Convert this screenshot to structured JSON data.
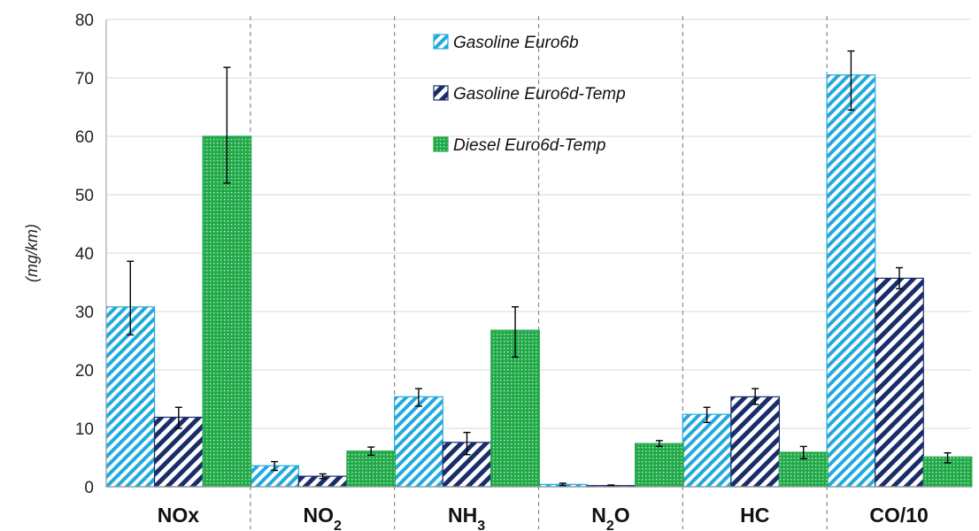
{
  "chart_data": {
    "type": "bar",
    "categories": [
      "NOx",
      "NO2",
      "NH3",
      "N2O",
      "HC",
      "CO/10"
    ],
    "category_labels": [
      {
        "main": "NOx",
        "sub": ""
      },
      {
        "main": "NO",
        "sub": "2"
      },
      {
        "main": "NH",
        "sub": "3"
      },
      {
        "main": "N",
        "sub": "2",
        "tail": "O"
      },
      {
        "main": "HC",
        "sub": ""
      },
      {
        "main": "CO/10",
        "sub": ""
      }
    ],
    "ylabel": "(mg/km)",
    "ylim": [
      0,
      80
    ],
    "yticks": [
      0,
      10,
      20,
      30,
      40,
      50,
      60,
      70,
      80
    ],
    "grid": true,
    "legend_position": "top-center",
    "series": [
      {
        "name": "Gasoline Euro6b",
        "pattern": "diagonal-light",
        "color": "#22aadd",
        "values": [
          30.8,
          3.6,
          15.4,
          0.4,
          12.4,
          70.5
        ],
        "error": [
          [
            26.0,
            38.6
          ],
          [
            2.8,
            4.3
          ],
          [
            13.8,
            16.8
          ],
          [
            0.2,
            0.6
          ],
          [
            11.0,
            13.6
          ],
          [
            64.5,
            74.6
          ]
        ]
      },
      {
        "name": "Gasoline Euro6d-Temp",
        "pattern": "diagonal-dark",
        "color": "#1a2d6b",
        "values": [
          11.9,
          1.8,
          7.6,
          0.2,
          15.4,
          35.7
        ],
        "error": [
          [
            10.0,
            13.6
          ],
          [
            1.4,
            2.2
          ],
          [
            5.5,
            9.3
          ],
          [
            0.1,
            0.3
          ],
          [
            14.1,
            16.8
          ],
          [
            33.9,
            37.5
          ]
        ]
      },
      {
        "name": "Diesel Euro6d-Temp",
        "pattern": "dotted-green",
        "color": "#22aa4a",
        "values": [
          60.0,
          6.1,
          26.8,
          7.4,
          5.9,
          5.1
        ],
        "error": [
          [
            52.0,
            71.8
          ],
          [
            5.4,
            6.8
          ],
          [
            22.2,
            30.8
          ],
          [
            6.9,
            7.9
          ],
          [
            4.8,
            6.9
          ],
          [
            4.1,
            5.8
          ]
        ]
      }
    ]
  }
}
